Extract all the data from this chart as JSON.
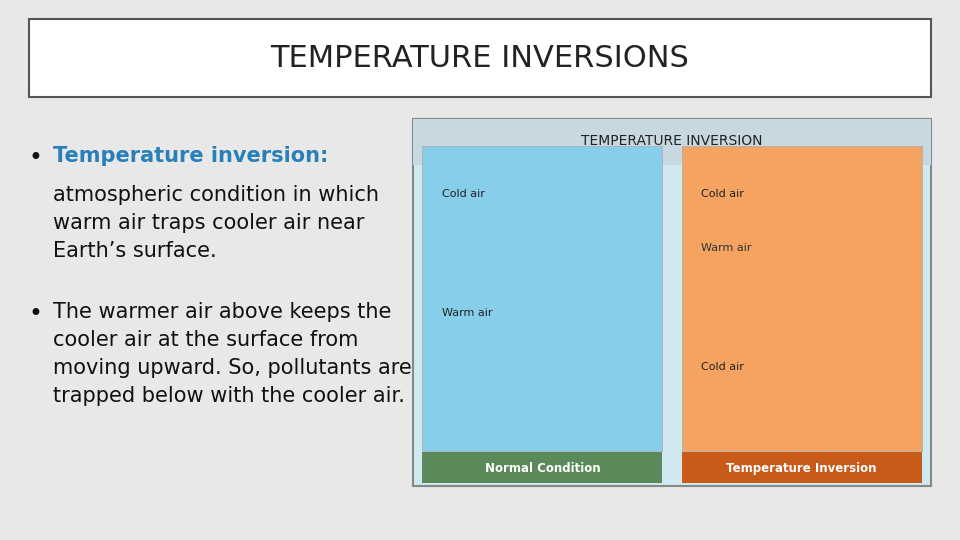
{
  "title": "TEMPERATURE INVERSIONS",
  "title_fontsize": 22,
  "title_color": "#222222",
  "bg_color": "#e8e8e8",
  "title_box_color": "#ffffff",
  "title_box_edge": "#555555",
  "bullet1_bold": "Temperature inversion:",
  "bullet1_bold_color": "#2980b9",
  "bullet1_rest": " an\natmospheric condition in which\nwarm air traps cooler air near\nEarth’s surface.",
  "bullet2": "The warmer air above keeps the\ncooler air at the surface from\nmoving upward. So, pollutants are\ntrapped below with the cooler air.",
  "bullet_fontsize": 15,
  "bullet_color": "#111111",
  "image_placeholder_color": "#cccccc"
}
